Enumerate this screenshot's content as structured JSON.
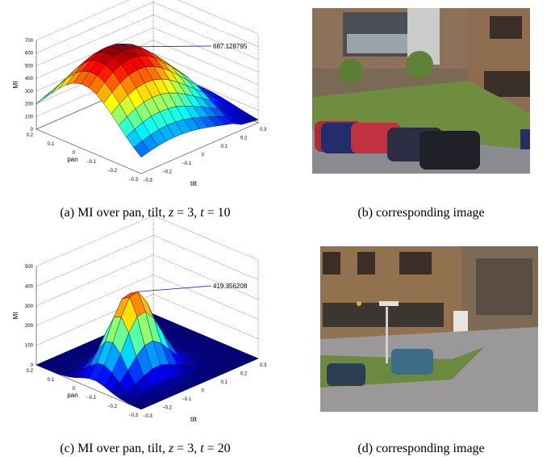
{
  "figures": [
    {
      "plot": {
        "z_label": "MI",
        "z_ticks": [
          "0",
          "100",
          "200",
          "300",
          "400",
          "500",
          "600",
          "700"
        ],
        "pan_label": "pan",
        "pan_ticks": [
          "0.2",
          "0.1",
          "0",
          "−0.1",
          "−0.2",
          "−0.3"
        ],
        "tilt_label": "tilt",
        "tilt_ticks": [
          "−0.3",
          "−0.2",
          "−0.1",
          "0",
          "0.1",
          "0.2",
          "0.3"
        ],
        "peak_label": "687.128795"
      },
      "plot_caption": {
        "prefix": "(a) MI over pan, tilt, ",
        "z": "z",
        "z_value": " = 3, ",
        "t": "t",
        "t_value": " = 10"
      },
      "image_caption": "(b) corresponding image"
    },
    {
      "plot": {
        "z_label": "MI",
        "z_ticks": [
          "0",
          "100",
          "200",
          "300",
          "400",
          "500"
        ],
        "pan_label": "pan",
        "pan_ticks": [
          "0.2",
          "0.1",
          "0",
          "−0.1",
          "−0.2",
          "−0.3"
        ],
        "tilt_label": "tilt",
        "tilt_ticks": [
          "−0.3",
          "−0.2",
          "−0.1",
          "0",
          "0.1",
          "0.2",
          "0.3"
        ],
        "peak_label": "419.356208"
      },
      "plot_caption": {
        "prefix": "(c) MI over pan, tilt, ",
        "z": "z",
        "z_value": " = 3, ",
        "t": "t",
        "t_value": " = 20"
      },
      "image_caption": "(d) corresponding image"
    }
  ]
}
